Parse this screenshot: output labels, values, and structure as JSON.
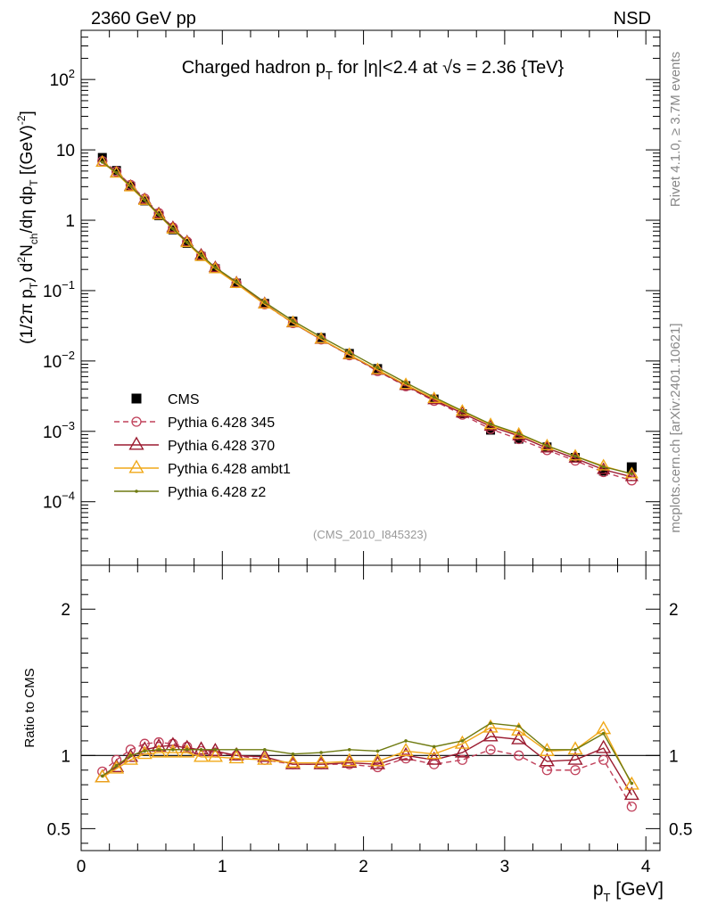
{
  "header": {
    "energy_label": "2360 GeV pp",
    "process_label": "NSD",
    "side_label_top": "Rivet 4.1.0, ≥ 3.7M events",
    "side_label_bottom": "mcplots.cern.ch [arXiv:2401.10621]",
    "analysis_id": "(CMS_2010_I845323)"
  },
  "chart_data": [
    {
      "type": "line",
      "panel": "main",
      "title": "Charged hadron p_T for |η|<2.4 at √s = 2.36 {TeV}",
      "title_parts": {
        "pre": "Charged hadron p",
        "sub": "T",
        "post": " for |η|<2.4 at √s = 2.36 {TeV}"
      },
      "ylabel": "(1/2π p_T) d²N_ch/dη dp_T [(GeV)⁻²]",
      "ylabel_parts": {
        "p1": "(1/2π p",
        "s1": "T",
        "p2": ") d",
        "sup2": "2",
        "p3": "N",
        "s3": "ch",
        "p4": "/dη  dp",
        "s4": "T",
        "p5": " [(GeV)",
        "sup5": "-2",
        "p6": "]"
      },
      "yscale": "log",
      "xlim": [
        0,
        4.1
      ],
      "ylim": [
        1.25e-05,
        500
      ],
      "x_ticks": [
        0,
        1,
        2,
        3,
        4
      ],
      "y_ticks": [
        {
          "value": 100,
          "base": "10",
          "exp": "2"
        },
        {
          "value": 10,
          "base": "10",
          "exp": ""
        },
        {
          "value": 1,
          "base": "1",
          "exp": ""
        },
        {
          "value": 0.1,
          "base": "10",
          "exp": "−1"
        },
        {
          "value": 0.01,
          "base": "10",
          "exp": "−2"
        },
        {
          "value": 0.001,
          "base": "10",
          "exp": "−3"
        },
        {
          "value": 0.0001,
          "base": "10",
          "exp": "−4"
        }
      ],
      "x": [
        0.15,
        0.25,
        0.35,
        0.45,
        0.55,
        0.65,
        0.75,
        0.85,
        0.95,
        1.1,
        1.3,
        1.5,
        1.7,
        1.9,
        2.1,
        2.3,
        2.5,
        2.7,
        2.9,
        3.1,
        3.3,
        3.5,
        3.7,
        3.9
      ],
      "legend_position": "lower-left",
      "series": [
        {
          "name": "CMS",
          "marker": "square",
          "color": "#000000",
          "dash": "",
          "values": [
            7.8,
            5.1,
            3.05,
            1.88,
            1.16,
            0.73,
            0.468,
            0.306,
            0.205,
            0.128,
            0.0658,
            0.0368,
            0.0215,
            0.0128,
            0.0078,
            0.00446,
            0.00288,
            0.00178,
            0.00104,
            0.000775,
            0.000601,
            0.000426,
            0.000272,
            0.000309
          ]
        },
        {
          "name": "Pythia 6.428 345",
          "marker": "circle",
          "color": "#c0405a",
          "dash": "6,4",
          "ratio": [
            0.89,
            0.97,
            1.04,
            1.08,
            1.09,
            1.08,
            1.06,
            1.03,
            1.02,
            1.0,
            0.97,
            0.94,
            0.94,
            0.94,
            0.92,
            0.98,
            0.94,
            0.97,
            1.04,
            1.0,
            0.9,
            0.9,
            0.97,
            0.65
          ]
        },
        {
          "name": "Pythia 6.428 370",
          "marker": "triangle",
          "color": "#9b1b30",
          "dash": "",
          "ratio": [
            0.85,
            0.92,
            0.99,
            1.04,
            1.06,
            1.07,
            1.05,
            1.04,
            1.03,
            1.0,
            0.99,
            0.94,
            0.94,
            0.95,
            0.94,
            1.0,
            0.97,
            1.02,
            1.13,
            1.11,
            0.96,
            0.97,
            1.05,
            0.73
          ]
        },
        {
          "name": "Pythia 6.428 ambt1",
          "marker": "triangle",
          "color": "#f0a818",
          "dash": "",
          "ratio": [
            0.85,
            0.91,
            0.97,
            1.01,
            1.02,
            1.02,
            1.02,
            0.99,
            0.99,
            0.98,
            0.97,
            0.95,
            0.95,
            0.96,
            0.96,
            1.03,
            1.01,
            1.08,
            1.19,
            1.17,
            1.03,
            1.04,
            1.18,
            0.8
          ]
        },
        {
          "name": "Pythia 6.428 z2",
          "marker": "dot",
          "color": "#6e7a10",
          "dash": "",
          "ratio": [
            0.86,
            0.93,
            1.0,
            1.03,
            1.04,
            1.04,
            1.04,
            1.04,
            1.04,
            1.04,
            1.04,
            1.01,
            1.02,
            1.04,
            1.03,
            1.1,
            1.06,
            1.1,
            1.22,
            1.2,
            1.04,
            1.04,
            1.15,
            0.81
          ]
        }
      ]
    },
    {
      "type": "line",
      "panel": "ratio",
      "xlabel": "p_T [GeV]",
      "xlabel_parts": {
        "pre": "p",
        "sub": "T",
        "post": " [GeV]"
      },
      "ylabel": "Ratio to CMS",
      "xlim": [
        0,
        4.1
      ],
      "ylim": [
        0.35,
        2.3
      ],
      "y_ticks": [
        0.5,
        1,
        2
      ],
      "y_tick_labels": [
        "0.5",
        "1",
        "2"
      ],
      "x_ticks": [
        0,
        1,
        2,
        3,
        4
      ],
      "x_tick_labels": [
        "0",
        "1",
        "2",
        "3",
        "4"
      ],
      "reference_line": 1
    }
  ]
}
